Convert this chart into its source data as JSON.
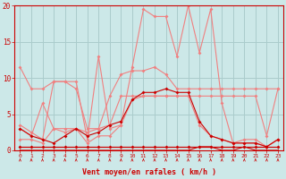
{
  "x": [
    0,
    1,
    2,
    3,
    4,
    5,
    6,
    7,
    8,
    9,
    10,
    11,
    12,
    13,
    14,
    15,
    16,
    17,
    18,
    19,
    20,
    21,
    22,
    23
  ],
  "series_rafales": [
    3.5,
    2.5,
    1.5,
    9.5,
    9.5,
    9.5,
    1.5,
    13.0,
    3.0,
    3.5,
    11.5,
    19.5,
    18.5,
    18.5,
    13.0,
    20.0,
    13.5,
    19.5,
    6.5,
    1.0,
    1.5,
    1.5,
    0.5,
    1.5
  ],
  "series_upper_light": [
    11.5,
    8.5,
    8.5,
    9.5,
    9.5,
    8.5,
    3.0,
    3.0,
    7.5,
    10.5,
    11.0,
    11.0,
    11.5,
    10.5,
    8.5,
    8.5,
    8.5,
    8.5,
    8.5,
    8.5,
    8.5,
    8.5,
    8.5,
    8.5
  ],
  "series_mid_light": [
    3.0,
    2.0,
    6.5,
    3.0,
    2.5,
    3.0,
    2.5,
    3.0,
    3.5,
    7.5,
    7.5,
    7.5,
    7.5,
    7.5,
    7.5,
    7.5,
    7.5,
    7.5,
    7.5,
    7.5,
    7.5,
    7.5,
    2.0,
    8.5
  ],
  "series_low_light": [
    1.5,
    1.5,
    1.0,
    3.0,
    3.0,
    3.0,
    1.0,
    2.0,
    2.0,
    3.5,
    7.0,
    7.5,
    7.5,
    7.5,
    7.5,
    7.5,
    3.5,
    2.0,
    1.5,
    1.0,
    1.0,
    1.0,
    0.5,
    1.5
  ],
  "series_wind_dark": [
    3.0,
    2.0,
    1.5,
    1.0,
    2.0,
    3.0,
    2.0,
    2.5,
    3.5,
    4.0,
    7.0,
    8.0,
    8.0,
    8.5,
    8.0,
    8.0,
    4.0,
    2.0,
    1.5,
    1.0,
    1.0,
    1.0,
    0.5,
    1.5
  ],
  "series_near_zero1": [
    0.5,
    0.5,
    0.5,
    0.5,
    0.5,
    0.5,
    0.5,
    0.5,
    0.5,
    0.5,
    0.5,
    0.5,
    0.5,
    0.5,
    0.5,
    0.5,
    0.5,
    0.5,
    0.5,
    0.5,
    0.5,
    0.5,
    0.5,
    0.5
  ],
  "series_near_zero2": [
    0.5,
    0.5,
    0.5,
    0.5,
    0.5,
    0.5,
    0.5,
    0.5,
    0.5,
    0.5,
    0.5,
    0.5,
    0.5,
    0.5,
    0.5,
    0.5,
    0.5,
    0.5,
    0.5,
    0.5,
    0.5,
    0.5,
    0.5,
    0.5
  ],
  "series_near_zero3": [
    0.0,
    0.0,
    0.0,
    0.0,
    0.0,
    0.0,
    0.0,
    0.0,
    0.0,
    0.0,
    0.0,
    0.0,
    0.0,
    0.0,
    0.0,
    0.0,
    0.5,
    0.5,
    0.0,
    0.0,
    0.5,
    0.0,
    0.0,
    0.0
  ],
  "color_light": "#f08080",
  "color_dark": "#cc0000",
  "bg_color": "#cce8e8",
  "grid_color": "#aacccc",
  "xlabel": "Vent moyen/en rafales ( km/h )",
  "ylim": [
    0,
    20
  ],
  "yticks": [
    0,
    5,
    10,
    15,
    20
  ],
  "xticks": [
    0,
    1,
    2,
    3,
    4,
    5,
    6,
    7,
    8,
    9,
    10,
    11,
    12,
    13,
    14,
    15,
    16,
    17,
    18,
    19,
    20,
    21,
    22,
    23
  ]
}
